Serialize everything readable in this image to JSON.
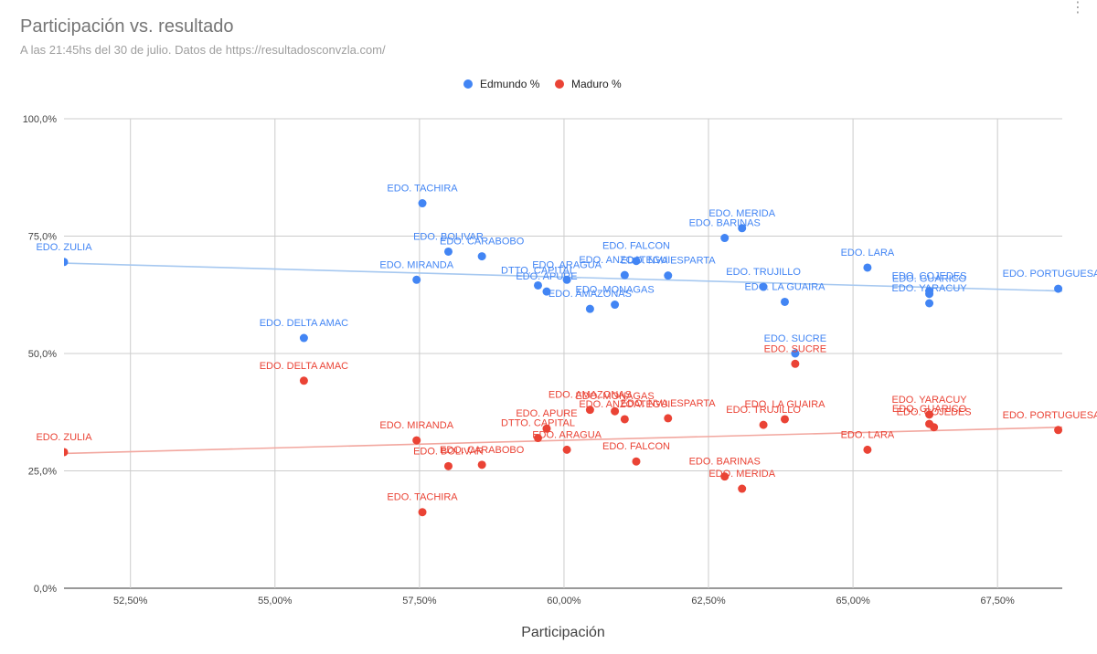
{
  "menu_icon": "kebab-menu-icon",
  "chart_data": {
    "type": "scatter",
    "title": "Participación vs. resultado",
    "subtitle": "A las 21:45hs del 30 de julio. Datos de https://resultadosconvzla.com/",
    "xlabel": "Participación",
    "ylabel": "",
    "xlim": [
      0.5135,
      0.6862
    ],
    "ylim": [
      0,
      1
    ],
    "x_ticks": [
      {
        "value": 0.525,
        "label": "52,50%"
      },
      {
        "value": 0.55,
        "label": "55,00%"
      },
      {
        "value": 0.575,
        "label": "57,50%"
      },
      {
        "value": 0.6,
        "label": "60,00%"
      },
      {
        "value": 0.625,
        "label": "62,50%"
      },
      {
        "value": 0.65,
        "label": "65,00%"
      },
      {
        "value": 0.675,
        "label": "67,50%"
      }
    ],
    "y_ticks": [
      {
        "value": 0,
        "label": "0,0%"
      },
      {
        "value": 0.25,
        "label": "25,0%"
      },
      {
        "value": 0.5,
        "label": "50,0%"
      },
      {
        "value": 0.75,
        "label": "75,0%"
      },
      {
        "value": 1,
        "label": "100,0%"
      }
    ],
    "grid": true,
    "legend_position": "top",
    "series": [
      {
        "name": "Edmundo %",
        "color": "#4285f4",
        "trendline": {
          "x": [
            0.5135,
            0.6862
          ],
          "y": [
            0.6925,
            0.633
          ],
          "color": "#a6c8f0"
        },
        "points": [
          {
            "label": "EDO. ZULIA",
            "x": 0.5135,
            "y": 0.695
          },
          {
            "label": "EDO. DELTA AMAC",
            "x": 0.555,
            "y": 0.533
          },
          {
            "label": "EDO. TACHIRA",
            "x": 0.5755,
            "y": 0.82
          },
          {
            "label": "EDO. MIRANDA",
            "x": 0.5745,
            "y": 0.657
          },
          {
            "label": "EDO. BOLIVAR",
            "x": 0.58,
            "y": 0.717
          },
          {
            "label": "EDO. CARABOBO",
            "x": 0.5858,
            "y": 0.707
          },
          {
            "label": "DTTO. CAPITAL",
            "x": 0.5955,
            "y": 0.645
          },
          {
            "label": "EDO. APURE",
            "x": 0.597,
            "y": 0.632
          },
          {
            "label": "EDO. ARAGUA",
            "x": 0.6005,
            "y": 0.657
          },
          {
            "label": "EDO. AMAZONAS",
            "x": 0.6045,
            "y": 0.595
          },
          {
            "label": "EDO. MONAGAS",
            "x": 0.6088,
            "y": 0.604
          },
          {
            "label": "EDO. ANZOATEGUI",
            "x": 0.6105,
            "y": 0.667
          },
          {
            "label": "EDO. NVA ESPARTA",
            "x": 0.618,
            "y": 0.666
          },
          {
            "label": "EDO. FALCON",
            "x": 0.6125,
            "y": 0.697
          },
          {
            "label": "EDO. BARINAS",
            "x": 0.6278,
            "y": 0.746
          },
          {
            "label": "EDO. MERIDA",
            "x": 0.6308,
            "y": 0.767
          },
          {
            "label": "EDO. TRUJILLO",
            "x": 0.6345,
            "y": 0.642
          },
          {
            "label": "EDO. LA GUAIRA",
            "x": 0.6382,
            "y": 0.61
          },
          {
            "label": "EDO. SUCRE",
            "x": 0.64,
            "y": 0.5
          },
          {
            "label": "EDO. LARA",
            "x": 0.6525,
            "y": 0.683
          },
          {
            "label": "EDO. GUARICO",
            "x": 0.6632,
            "y": 0.627
          },
          {
            "label": "EDO. COJEDES",
            "x": 0.6632,
            "y": 0.633
          },
          {
            "label": "EDO. YARACUY",
            "x": 0.6632,
            "y": 0.607
          },
          {
            "label": "EDO. PORTUGUESA",
            "x": 0.6855,
            "y": 0.638
          }
        ]
      },
      {
        "name": "Maduro %",
        "color": "#ea4335",
        "trendline": {
          "x": [
            0.5135,
            0.6862
          ],
          "y": [
            0.287,
            0.343
          ],
          "color": "#f2a79f"
        },
        "points": [
          {
            "label": "EDO. ZULIA",
            "x": 0.5135,
            "y": 0.29
          },
          {
            "label": "EDO. DELTA AMAC",
            "x": 0.555,
            "y": 0.442
          },
          {
            "label": "EDO. TACHIRA",
            "x": 0.5755,
            "y": 0.162
          },
          {
            "label": "EDO. MIRANDA",
            "x": 0.5745,
            "y": 0.315
          },
          {
            "label": "EDO. BOLIVAR",
            "x": 0.58,
            "y": 0.26
          },
          {
            "label": "EDO. CARABOBO",
            "x": 0.5858,
            "y": 0.263
          },
          {
            "label": "DTTO. CAPITAL",
            "x": 0.5955,
            "y": 0.32
          },
          {
            "label": "EDO. APURE",
            "x": 0.597,
            "y": 0.34
          },
          {
            "label": "EDO. ARAGUA",
            "x": 0.6005,
            "y": 0.295
          },
          {
            "label": "EDO. AMAZONAS",
            "x": 0.6045,
            "y": 0.38
          },
          {
            "label": "EDO. MONAGAS",
            "x": 0.6088,
            "y": 0.377
          },
          {
            "label": "EDO. ANZOATEGUI",
            "x": 0.6105,
            "y": 0.36
          },
          {
            "label": "EDO. NVA ESPARTA",
            "x": 0.618,
            "y": 0.362
          },
          {
            "label": "EDO. FALCON",
            "x": 0.6125,
            "y": 0.27
          },
          {
            "label": "EDO. BARINAS",
            "x": 0.6278,
            "y": 0.238
          },
          {
            "label": "EDO. MERIDA",
            "x": 0.6308,
            "y": 0.212
          },
          {
            "label": "EDO. TRUJILLO",
            "x": 0.6345,
            "y": 0.348
          },
          {
            "label": "EDO. LA GUAIRA",
            "x": 0.6382,
            "y": 0.36
          },
          {
            "label": "EDO. SUCRE",
            "x": 0.64,
            "y": 0.478
          },
          {
            "label": "EDO. LARA",
            "x": 0.6525,
            "y": 0.295
          },
          {
            "label": "EDO. GUARICO",
            "x": 0.6632,
            "y": 0.35
          },
          {
            "label": "EDO. COJEDES",
            "x": 0.664,
            "y": 0.343
          },
          {
            "label": "EDO. YARACUY",
            "x": 0.6632,
            "y": 0.37
          },
          {
            "label": "EDO. PORTUGUESA",
            "x": 0.6855,
            "y": 0.337
          }
        ]
      }
    ]
  }
}
